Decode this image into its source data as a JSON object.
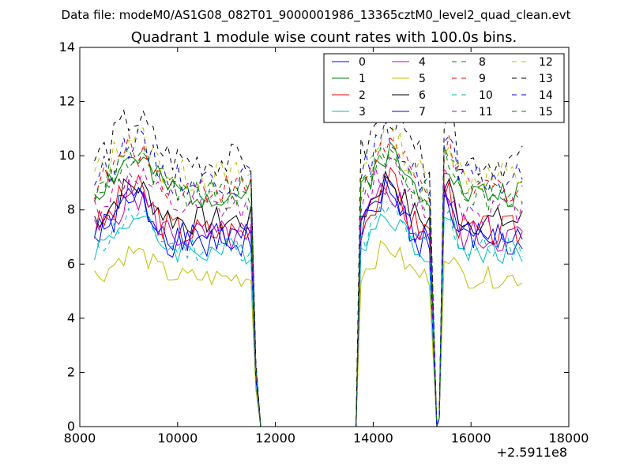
{
  "figure": {
    "suptitle": "Data file: modeM0/AS1G08_082T01_9000001986_13365cztM0_level2_quad_clean.evt",
    "title": "Quadrant 1 module wise count rates with 100.0s bins.",
    "x_offset_label": "+2.5911e8"
  },
  "chart_data": {
    "type": "line",
    "title": "Quadrant 1 module wise count rates with 100.0s bins.",
    "xlabel": "",
    "ylabel": "",
    "xlim": [
      8000,
      18000
    ],
    "ylim": [
      0,
      14
    ],
    "x_offset": 259110000,
    "xticks": [
      8000,
      10000,
      12000,
      14000,
      16000,
      18000
    ],
    "yticks": [
      0,
      2,
      4,
      6,
      8,
      10,
      12,
      14
    ],
    "grid": false,
    "legend_placement": "upper-right",
    "legend_columns": 4,
    "series": [
      {
        "name": "0",
        "color": "#0000ff",
        "dash": "solid",
        "base": 6.8,
        "amp": 1.4,
        "seed": 1
      },
      {
        "name": "1",
        "color": "#008000",
        "dash": "solid",
        "base": 8.6,
        "amp": 1.1,
        "seed": 2
      },
      {
        "name": "2",
        "color": "#ff0000",
        "dash": "solid",
        "base": 7.2,
        "amp": 1.3,
        "seed": 3
      },
      {
        "name": "3",
        "color": "#00bfbf",
        "dash": "solid",
        "base": 6.5,
        "amp": 1.0,
        "seed": 4
      },
      {
        "name": "4",
        "color": "#bf00bf",
        "dash": "solid",
        "base": 7.0,
        "amp": 1.3,
        "seed": 5
      },
      {
        "name": "5",
        "color": "#bfbf00",
        "dash": "solid",
        "base": 5.5,
        "amp": 0.8,
        "seed": 6
      },
      {
        "name": "6",
        "color": "#000000",
        "dash": "solid",
        "base": 7.6,
        "amp": 1.1,
        "seed": 7
      },
      {
        "name": "7",
        "color": "#0000ff",
        "dash": "solid",
        "base": 7.0,
        "amp": 1.2,
        "seed": 8
      },
      {
        "name": "8",
        "color": "#008000",
        "dash": "dashed",
        "base": 8.5,
        "amp": 1.2,
        "seed": 9
      },
      {
        "name": "9",
        "color": "#ff0000",
        "dash": "dashed",
        "base": 8.8,
        "amp": 1.2,
        "seed": 10
      },
      {
        "name": "10",
        "color": "#00bfbf",
        "dash": "dashed",
        "base": 6.6,
        "amp": 1.0,
        "seed": 11
      },
      {
        "name": "11",
        "color": "#bf00bf",
        "dash": "dashed",
        "base": 8.0,
        "amp": 1.1,
        "seed": 12
      },
      {
        "name": "12",
        "color": "#bfbf00",
        "dash": "dashed",
        "base": 9.2,
        "amp": 1.3,
        "seed": 13
      },
      {
        "name": "13",
        "color": "#000000",
        "dash": "dashed",
        "base": 9.8,
        "amp": 1.3,
        "seed": 14
      },
      {
        "name": "14",
        "color": "#0000ff",
        "dash": "dashed",
        "base": 9.1,
        "amp": 1.2,
        "seed": 15
      },
      {
        "name": "15",
        "color": "#008000",
        "dash": "dashed",
        "base": 8.7,
        "amp": 1.1,
        "seed": 16
      }
    ],
    "segments": [
      {
        "x_start": 8300,
        "x_end": 11500,
        "zero_start": 11700,
        "zero_end": 13650
      },
      {
        "x_start": 13750,
        "x_end": 15200,
        "zero_start": 15300,
        "zero_end": 15350
      },
      {
        "x_start": 15450,
        "x_end": 17100
      }
    ]
  }
}
